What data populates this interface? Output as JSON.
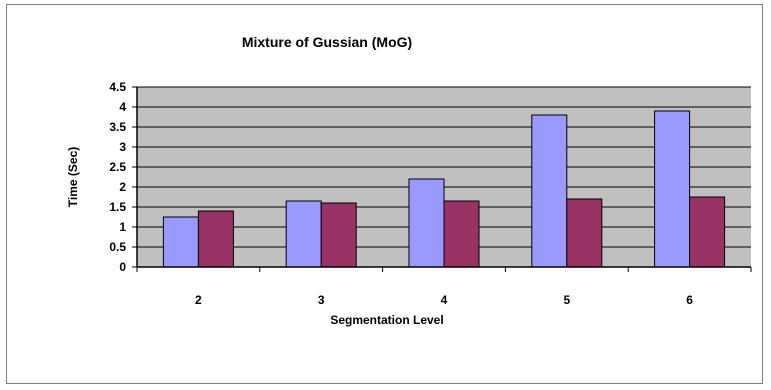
{
  "chart_data": {
    "type": "bar",
    "title": "Mixture of Gussian (MoG)",
    "xlabel": "Segmentation Level",
    "ylabel": "Time (Sec)",
    "categories": [
      "2",
      "3",
      "4",
      "5",
      "6"
    ],
    "series": [
      {
        "values": [
          1.25,
          1.65,
          2.2,
          3.8,
          3.9
        ],
        "color": "#9999ff"
      },
      {
        "values": [
          1.4,
          1.6,
          1.65,
          1.7,
          1.75
        ],
        "color": "#993366"
      }
    ],
    "ylim": [
      0,
      4.5
    ],
    "yticks": [
      "0",
      "0.5",
      "1",
      "1.5",
      "2",
      "2.5",
      "3",
      "3.5",
      "4",
      "4.5"
    ],
    "grid": true,
    "plot_background": "#c0c0c0",
    "legend": "none"
  }
}
